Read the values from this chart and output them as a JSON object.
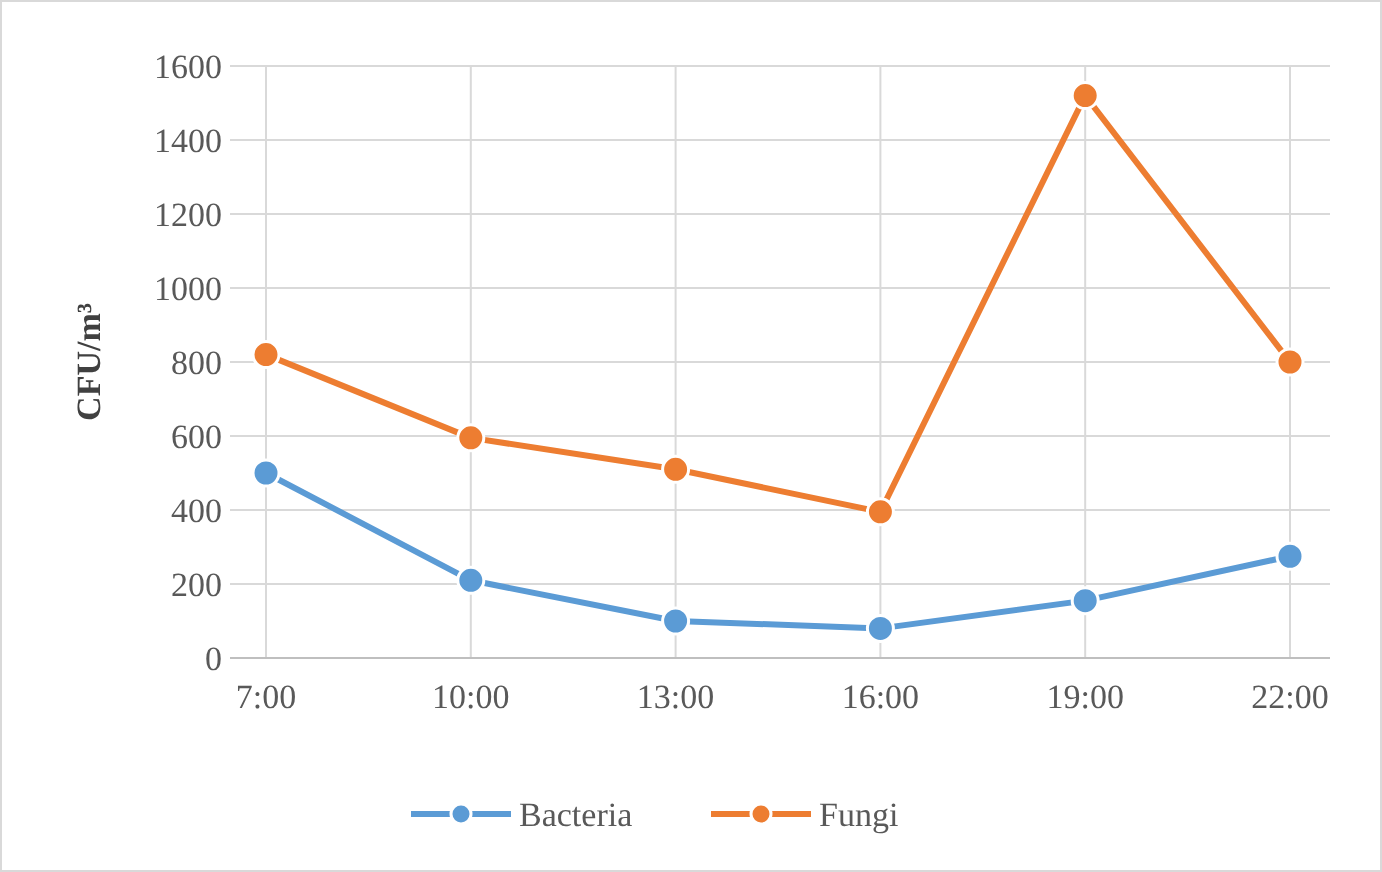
{
  "chart_data": {
    "type": "line",
    "ylabel": "CFU/m³",
    "categories": [
      "7:00",
      "10:00",
      "13:00",
      "16:00",
      "19:00",
      "22:00"
    ],
    "series": [
      {
        "name": "Bacteria",
        "color": "#5b9bd5",
        "values": [
          500,
          210,
          100,
          80,
          155,
          275
        ]
      },
      {
        "name": "Fungi",
        "color": "#ed7d31",
        "values": [
          820,
          595,
          510,
          395,
          1520,
          800
        ]
      }
    ],
    "ylim": [
      0,
      1600
    ],
    "yticks": [
      0,
      200,
      400,
      600,
      800,
      1000,
      1200,
      1400,
      1600
    ],
    "grid": true,
    "legend": "bottom",
    "marker": "circle",
    "line_style": "solid"
  }
}
